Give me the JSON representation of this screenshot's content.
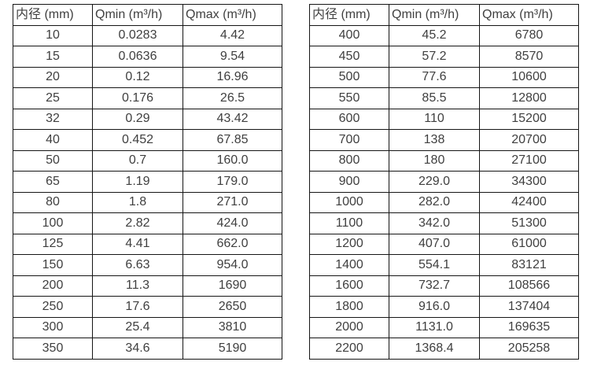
{
  "page": {
    "background_color": "#ffffff",
    "text_color": "#3f3f3f",
    "border_color": "#151515"
  },
  "chart_data": [
    {
      "type": "table",
      "title": "",
      "columns": [
        "内径 (mm)",
        "Qmin (m³/h)",
        "Qmax (m³/h)"
      ],
      "rows": [
        [
          "10",
          "0.0283",
          "4.42"
        ],
        [
          "15",
          "0.0636",
          "9.54"
        ],
        [
          "20",
          "0.12",
          "16.96"
        ],
        [
          "25",
          "0.176",
          "26.5"
        ],
        [
          "32",
          "0.29",
          "43.42"
        ],
        [
          "40",
          "0.452",
          "67.85"
        ],
        [
          "50",
          "0.7",
          "160.0"
        ],
        [
          "65",
          "1.19",
          "179.0"
        ],
        [
          "80",
          "1.8",
          "271.0"
        ],
        [
          "100",
          "2.82",
          "424.0"
        ],
        [
          "125",
          "4.41",
          "662.0"
        ],
        [
          "150",
          "6.63",
          "954.0"
        ],
        [
          "200",
          "11.3",
          "1690"
        ],
        [
          "250",
          "17.6",
          "2650"
        ],
        [
          "300",
          "25.4",
          "3810"
        ],
        [
          "350",
          "34.6",
          "5190"
        ]
      ]
    },
    {
      "type": "table",
      "title": "",
      "columns": [
        "内径 (mm)",
        "Qmin (m³/h)",
        "Qmax (m³/h)"
      ],
      "rows": [
        [
          "400",
          "45.2",
          "6780"
        ],
        [
          "450",
          "57.2",
          "8570"
        ],
        [
          "500",
          "77.6",
          "10600"
        ],
        [
          "550",
          "85.5",
          "12800"
        ],
        [
          "600",
          "110",
          "15200"
        ],
        [
          "700",
          "138",
          "20700"
        ],
        [
          "800",
          "180",
          "27100"
        ],
        [
          "900",
          "229.0",
          "34300"
        ],
        [
          "1000",
          "282.0",
          "42400"
        ],
        [
          "1100",
          "342.0",
          "51300"
        ],
        [
          "1200",
          "407.0",
          "61000"
        ],
        [
          "1400",
          "554.1",
          "83121"
        ],
        [
          "1600",
          "732.7",
          "108566"
        ],
        [
          "1800",
          "916.0",
          "137404"
        ],
        [
          "2000",
          "1131.0",
          "169635"
        ],
        [
          "2200",
          "1368.4",
          "205258"
        ]
      ]
    }
  ]
}
